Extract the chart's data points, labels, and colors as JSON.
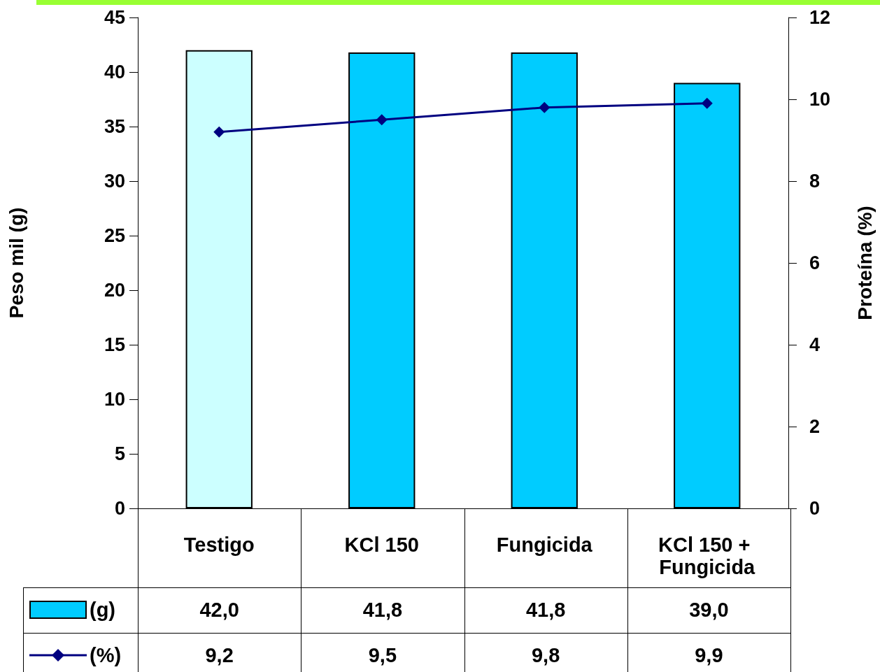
{
  "chart_data": {
    "type": "bar",
    "categories": [
      "Testigo",
      "KCl 150",
      "Fungicida",
      "KCl 150 + Fungicida"
    ],
    "series": [
      {
        "name": "(g)",
        "colors": [
          "#ccffff",
          "#00ccff",
          "#00ccff",
          "#00ccff"
        ],
        "color": "#00ccff",
        "values": [
          42.0,
          41.8,
          41.8,
          39.0
        ],
        "value_labels": [
          "42,0",
          "41,8",
          "41,8",
          "39,0"
        ]
      },
      {
        "name": "(%)",
        "type": "line",
        "axis": "y2",
        "color": "#000080",
        "values": [
          9.2,
          9.5,
          9.8,
          9.9
        ],
        "value_labels": [
          "9,2",
          "9,5",
          "9,8",
          "9,9"
        ]
      }
    ],
    "ylabel": "Peso mil (g)",
    "y2label": "Proteína (%)",
    "ylim": [
      0,
      45
    ],
    "yticks": [
      0,
      5,
      10,
      15,
      20,
      25,
      30,
      35,
      40,
      45
    ],
    "y2lim": [
      0,
      12
    ],
    "y2ticks": [
      0,
      2,
      4,
      6,
      8,
      10,
      12
    ],
    "grid": false,
    "legend": "bottom",
    "marker": "diamond",
    "line_style": "solid"
  }
}
